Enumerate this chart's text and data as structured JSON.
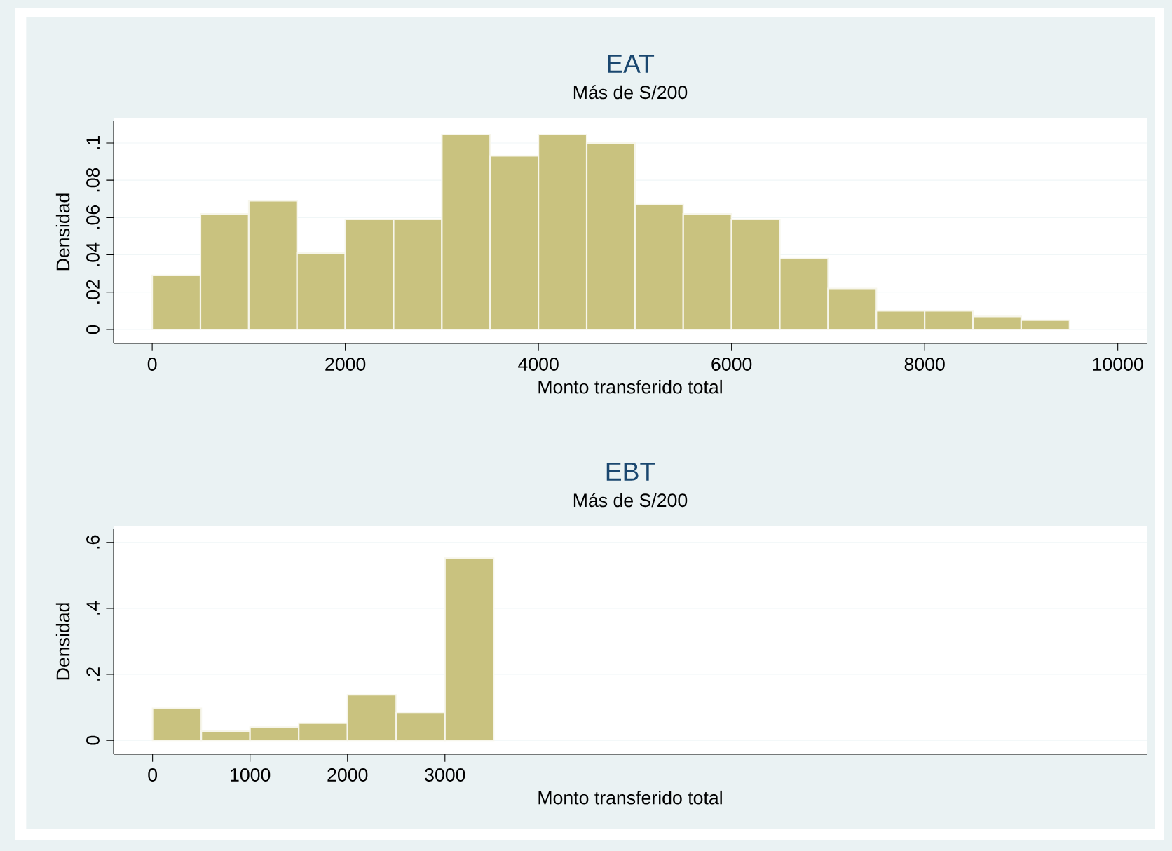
{
  "chart_data": [
    {
      "type": "histogram",
      "title": "EAT",
      "subtitle": "Más de S/200",
      "xlabel": "Monto transferido total",
      "ylabel": "Densidad",
      "color": "#c9c27f",
      "bins": [
        0,
        500,
        1000,
        1500,
        2000,
        2500,
        3000,
        3500,
        4000,
        4500,
        5000,
        5500,
        6000,
        6500,
        7000,
        7500,
        8000,
        8500,
        9000,
        9500
      ],
      "values": [
        0.029,
        0.062,
        0.069,
        0.041,
        0.059,
        0.059,
        0.1045,
        0.093,
        0.1045,
        0.1,
        0.067,
        0.062,
        0.059,
        0.038,
        0.022,
        0.01,
        0.01,
        0.007,
        0.005
      ],
      "xlim": [
        -400,
        10300
      ],
      "ylim": [
        -0.0075,
        0.112
      ],
      "xticks": [
        0,
        2000,
        4000,
        6000,
        8000,
        10000
      ],
      "yticks": [
        {
          "value": 0,
          "label": "0"
        },
        {
          "value": 0.02,
          "label": ".02"
        },
        {
          "value": 0.04,
          "label": ".04"
        },
        {
          "value": 0.06,
          "label": ".06"
        },
        {
          "value": 0.08,
          "label": ".08"
        },
        {
          "value": 0.1,
          "label": ".1"
        }
      ],
      "grid": "y"
    },
    {
      "type": "histogram",
      "title": "EBT",
      "subtitle": "Más de S/200",
      "xlabel": "Monto transferido total",
      "ylabel": "Densidad",
      "color": "#c9c27f",
      "bins": [
        0,
        500,
        1000,
        1500,
        2000,
        2500,
        3000,
        3500
      ],
      "values": [
        0.097,
        0.028,
        0.04,
        0.052,
        0.138,
        0.085,
        0.552
      ],
      "xlim": [
        -400,
        10200
      ],
      "ylim": [
        -0.042,
        0.642
      ],
      "xticks": [
        0,
        1000,
        2000,
        3000
      ],
      "yticks": [
        {
          "value": 0,
          "label": "0"
        },
        {
          "value": 0.2,
          "label": ".2"
        },
        {
          "value": 0.4,
          "label": ".4"
        },
        {
          "value": 0.6,
          "label": ".6"
        }
      ],
      "grid": "y"
    }
  ]
}
